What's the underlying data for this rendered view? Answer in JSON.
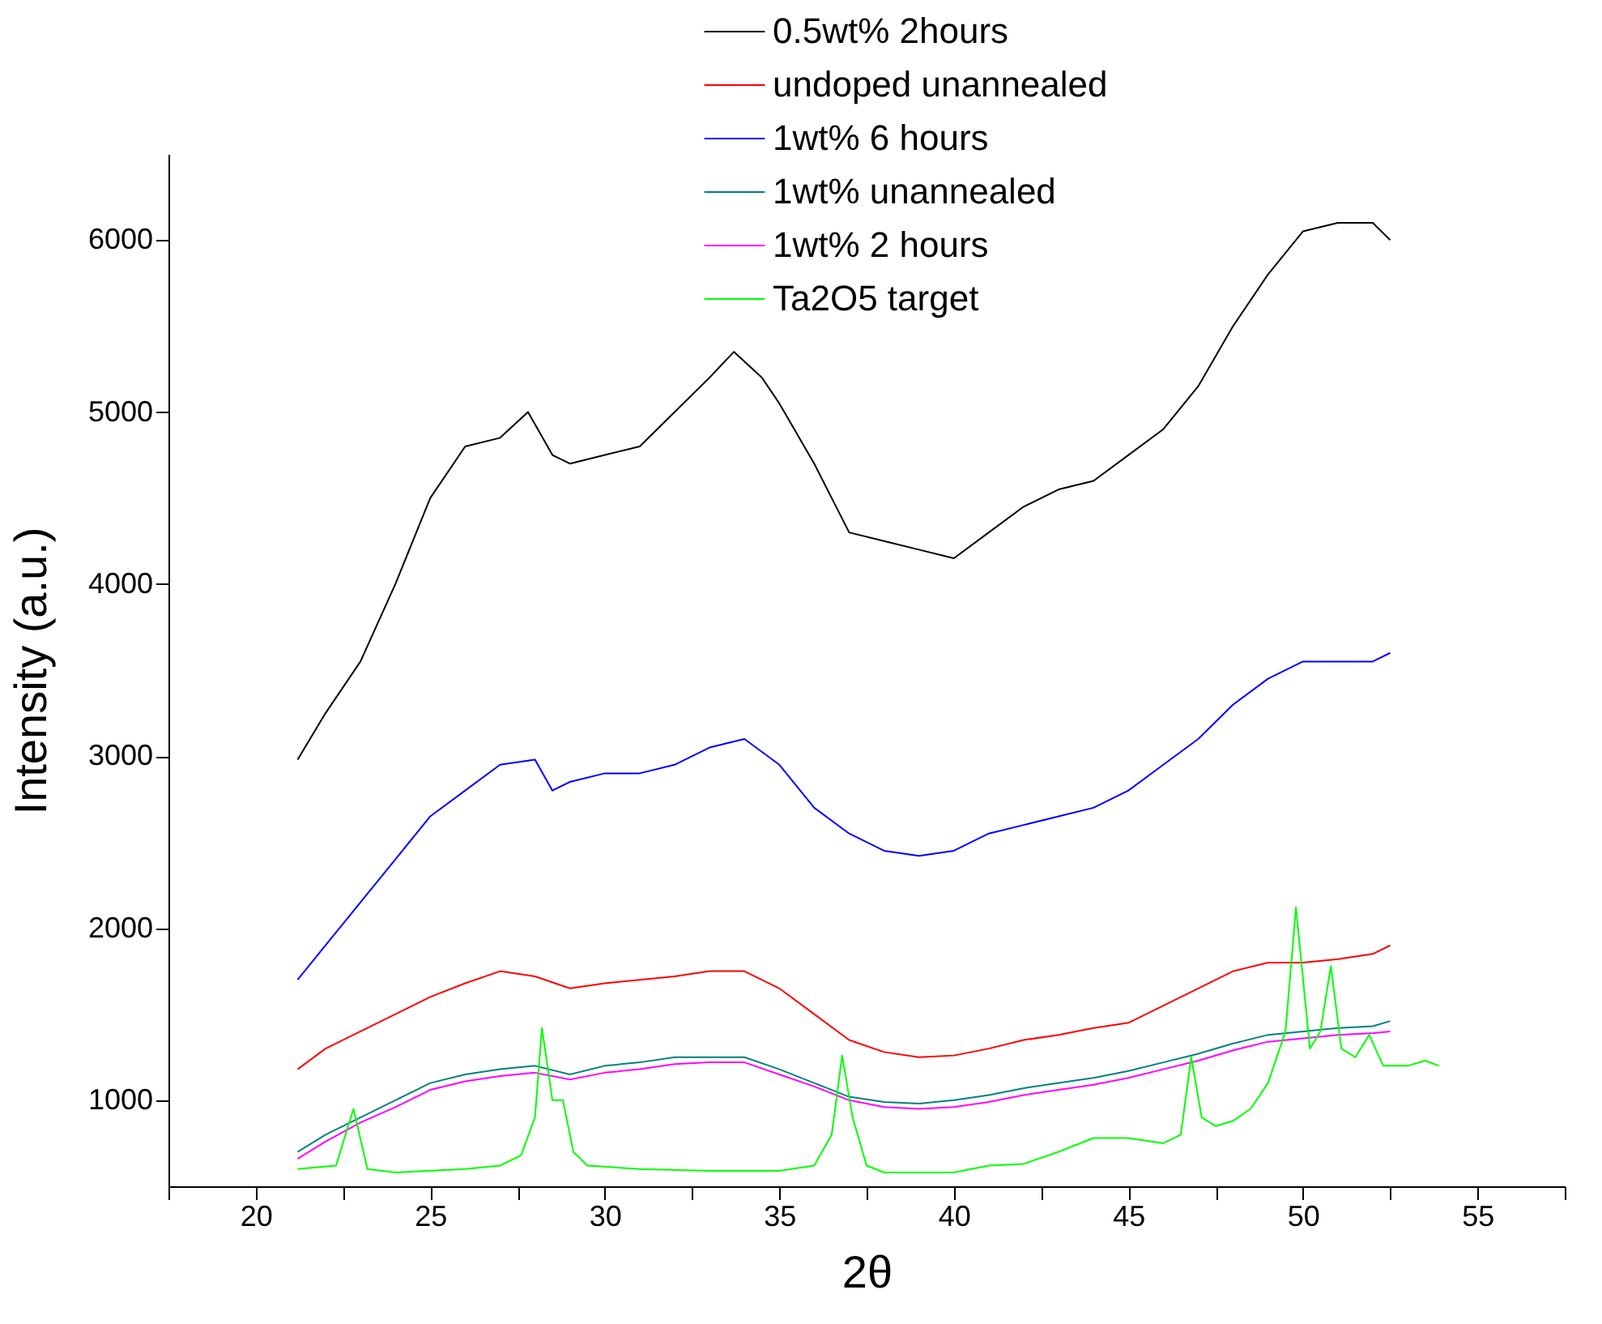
{
  "chart_data": {
    "type": "line",
    "xlabel": "2θ",
    "ylabel": "Intensity (a.u.)",
    "xlim": [
      17.5,
      57.5
    ],
    "ylim": [
      500,
      6500
    ],
    "xticks": [
      {
        "value": 17.5,
        "label": null
      },
      20,
      {
        "value": 22.5,
        "label": null
      },
      25,
      {
        "value": 27.5,
        "label": null
      },
      30,
      {
        "value": 32.5,
        "label": null
      },
      35,
      {
        "value": 37.5,
        "label": null
      },
      40,
      {
        "value": 42.5,
        "label": null
      },
      45,
      {
        "value": 47.5,
        "label": null
      },
      50,
      {
        "value": 52.5,
        "label": null
      },
      55,
      {
        "value": 57.5,
        "label": null
      }
    ],
    "yticks": [
      1000,
      2000,
      3000,
      4000,
      5000,
      6000
    ],
    "grid": false,
    "legend": "top",
    "marker": "none",
    "line_style": "solid",
    "series": [
      {
        "name": "0.5wt% 2hours",
        "color": "#000000",
        "x": [
          21.2,
          22,
          23,
          24,
          25,
          26,
          27,
          27.8,
          28.5,
          29,
          30,
          31,
          32,
          33,
          33.7,
          34.5,
          35,
          36,
          36.5,
          37,
          38,
          39,
          40,
          41,
          42,
          43,
          44,
          45,
          46,
          47,
          48,
          49,
          50,
          51,
          52,
          52.5
        ],
        "values": [
          2980,
          3250,
          3550,
          4000,
          4500,
          4800,
          4850,
          5000,
          4750,
          4700,
          4750,
          4800,
          5000,
          5200,
          5350,
          5200,
          5050,
          4700,
          4500,
          4300,
          4250,
          4200,
          4150,
          4300,
          4450,
          4550,
          4600,
          4750,
          4900,
          5150,
          5500,
          5800,
          6050,
          6100,
          6100,
          6000
        ]
      },
      {
        "name": "undoped unannealed",
        "color": "#ff0000",
        "x": [
          21.2,
          22,
          23,
          24,
          25,
          26,
          27,
          28,
          29,
          30,
          31,
          32,
          33,
          34,
          35,
          36,
          37,
          38,
          39,
          40,
          41,
          42,
          43,
          44,
          45,
          46,
          47,
          48,
          49,
          50,
          51,
          52,
          52.5
        ],
        "values": [
          1180,
          1300,
          1400,
          1500,
          1600,
          1680,
          1750,
          1720,
          1650,
          1680,
          1700,
          1720,
          1750,
          1750,
          1650,
          1500,
          1350,
          1280,
          1250,
          1260,
          1300,
          1350,
          1380,
          1420,
          1450,
          1550,
          1650,
          1750,
          1800,
          1800,
          1820,
          1850,
          1900
        ]
      },
      {
        "name": "1wt% 6 hours",
        "color": "#0000ff",
        "x": [
          21.2,
          22,
          23,
          24,
          25,
          26,
          27,
          28,
          28.5,
          29,
          30,
          31,
          32,
          33,
          34,
          35,
          36,
          37,
          38,
          39,
          40,
          41,
          42,
          43,
          44,
          45,
          46,
          47,
          48,
          49,
          50,
          51,
          52,
          52.5
        ],
        "values": [
          1700,
          1900,
          2150,
          2400,
          2650,
          2800,
          2950,
          2980,
          2800,
          2850,
          2900,
          2900,
          2950,
          3050,
          3100,
          2950,
          2700,
          2550,
          2450,
          2420,
          2450,
          2550,
          2600,
          2650,
          2700,
          2800,
          2950,
          3100,
          3300,
          3450,
          3550,
          3550,
          3550,
          3600
        ]
      },
      {
        "name": "1wt% unannealed",
        "color": "#008080",
        "x": [
          21.2,
          22,
          23,
          24,
          25,
          26,
          27,
          28,
          29,
          30,
          31,
          32,
          33,
          34,
          35,
          36,
          37,
          38,
          39,
          40,
          41,
          42,
          43,
          44,
          45,
          46,
          47,
          48,
          49,
          50,
          51,
          52,
          52.5
        ],
        "values": [
          700,
          800,
          900,
          1000,
          1100,
          1150,
          1180,
          1200,
          1150,
          1200,
          1220,
          1250,
          1250,
          1250,
          1180,
          1100,
          1020,
          990,
          980,
          1000,
          1030,
          1070,
          1100,
          1130,
          1170,
          1220,
          1270,
          1330,
          1380,
          1400,
          1420,
          1430,
          1460
        ]
      },
      {
        "name": "1wt% 2 hours",
        "color": "#ff00ff",
        "x": [
          21.2,
          22,
          23,
          24,
          25,
          26,
          27,
          28,
          29,
          30,
          31,
          32,
          33,
          34,
          35,
          36,
          37,
          38,
          39,
          40,
          41,
          42,
          43,
          44,
          45,
          46,
          47,
          48,
          49,
          50,
          51,
          52,
          52.5
        ],
        "values": [
          660,
          760,
          870,
          960,
          1060,
          1110,
          1140,
          1160,
          1120,
          1160,
          1180,
          1210,
          1220,
          1220,
          1150,
          1080,
          1000,
          960,
          950,
          960,
          990,
          1030,
          1060,
          1090,
          1130,
          1180,
          1230,
          1290,
          1340,
          1360,
          1380,
          1390,
          1400
        ]
      },
      {
        "name": "Ta2O5 target",
        "color": "#00ff00",
        "x": [
          21.2,
          22.3,
          22.8,
          23.2,
          24,
          26,
          27,
          27.6,
          28.0,
          28.2,
          28.5,
          28.8,
          29.1,
          29.5,
          31,
          33,
          35,
          36,
          36.5,
          36.8,
          37.1,
          37.5,
          38,
          40,
          41,
          42,
          43,
          44,
          45,
          46,
          46.5,
          46.8,
          47.1,
          47.5,
          48,
          48.5,
          49,
          49.5,
          49.8,
          50.2,
          50.5,
          50.8,
          51.1,
          51.5,
          51.9,
          52.3,
          53,
          53.5,
          53.9
        ],
        "values": [
          600,
          620,
          950,
          600,
          580,
          600,
          620,
          680,
          900,
          1420,
          1000,
          1000,
          700,
          620,
          600,
          590,
          590,
          620,
          800,
          1260,
          900,
          620,
          580,
          580,
          620,
          630,
          700,
          780,
          780,
          750,
          800,
          1250,
          900,
          850,
          880,
          950,
          1100,
          1400,
          2120,
          1300,
          1400,
          1780,
          1300,
          1250,
          1380,
          1200,
          1200,
          1230,
          1200
        ]
      }
    ]
  }
}
